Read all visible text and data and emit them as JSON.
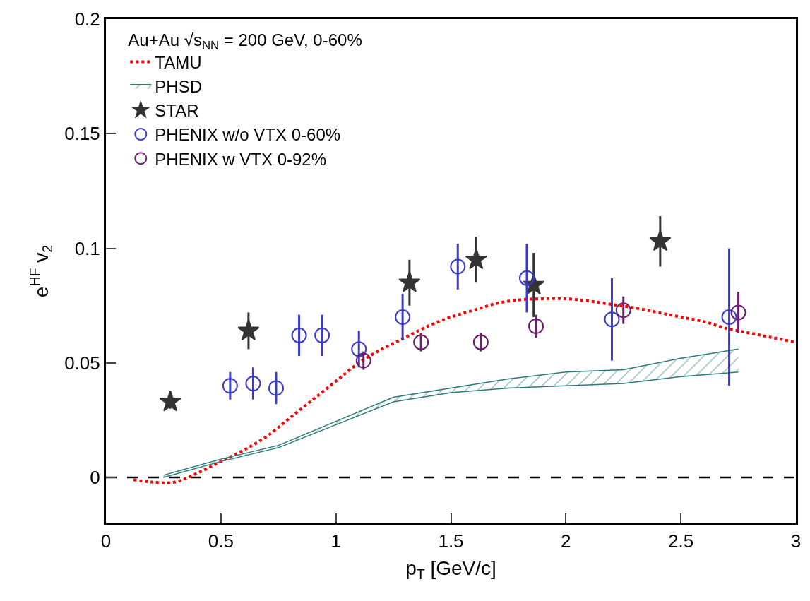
{
  "chart_data": {
    "type": "scatter",
    "xlabel": "p$_{T}$ [GeV/c]",
    "ylabel": "e$^{HF}$ v$_{2}$",
    "legend_title": "Au+Au √s$_{NN}$ = 200 GeV, 0-60%",
    "xlim": [
      0,
      3
    ],
    "ylim": [
      -0.02,
      0.2
    ],
    "xticks": [
      0,
      0.5,
      1,
      1.5,
      2,
      2.5,
      3
    ],
    "yticks": [
      0,
      0.05,
      0.1,
      0.15,
      0.2
    ],
    "grid": false,
    "legend": "top left",
    "ref_lines": [
      {
        "axis": "y",
        "value": 0,
        "label": null,
        "color": "#000000",
        "line_style": "dashed"
      }
    ],
    "series": [
      {
        "name": "TAMU",
        "type": "line",
        "color": "#ff0000",
        "line_style": "dotted",
        "marker": "none",
        "x": [
          0.12,
          0.2,
          0.3,
          0.4,
          0.5,
          0.6,
          0.7,
          0.8,
          0.9,
          1.0,
          1.1,
          1.2,
          1.3,
          1.4,
          1.5,
          1.6,
          1.7,
          1.8,
          1.9,
          2.0,
          2.1,
          2.2,
          2.3,
          2.4,
          2.5,
          2.6,
          2.7,
          2.8,
          2.9,
          3.0
        ],
        "values": [
          -0.001,
          -0.002,
          -0.002,
          0.002,
          0.007,
          0.012,
          0.018,
          0.026,
          0.034,
          0.042,
          0.05,
          0.056,
          0.061,
          0.066,
          0.07,
          0.073,
          0.076,
          0.0775,
          0.078,
          0.078,
          0.077,
          0.0755,
          0.074,
          0.072,
          0.07,
          0.068,
          0.065,
          0.063,
          0.061,
          0.059
        ]
      },
      {
        "type": "line",
        "color": "#2a7a78",
        "marker": "none",
        "x": [
          0.25,
          0.5,
          0.75,
          1.25,
          1.5,
          1.75,
          2.0,
          2.25,
          2.5,
          2.75
        ],
        "values": [
          0,
          0.007,
          0.013,
          0.033,
          0.037,
          0.039,
          0.04,
          0.041,
          0.044,
          0.046
        ]
      },
      {
        "name": "PHSD",
        "type": "area",
        "color": "#2a7a78",
        "x": [
          0.25,
          0.5,
          0.75,
          1.25,
          1.5,
          1.75,
          2.0,
          2.25,
          2.5,
          2.75
        ],
        "values": [
          0.001,
          0.008,
          0.014,
          0.035,
          0.039,
          0.043,
          0.046,
          0.047,
          0.052,
          0.056
        ]
      },
      {
        "name": "STAR",
        "color": "#333333",
        "marker": "star",
        "x": [
          0.28,
          0.62,
          1.32,
          1.61,
          1.86,
          2.41
        ],
        "values": [
          0.033,
          0.064,
          0.085,
          0.095,
          0.084,
          0.103
        ],
        "errors": [
          0.003,
          0.008,
          0.01,
          0.01,
          0.014,
          0.011
        ]
      },
      {
        "name": "PHENIX w/o VTX 0-60%",
        "color": "#3a3acf",
        "marker": "circle",
        "x": [
          0.54,
          0.64,
          0.74,
          0.84,
          0.94,
          1.1,
          1.29,
          1.53,
          1.83,
          2.2,
          2.71
        ],
        "values": [
          0.04,
          0.041,
          0.039,
          0.062,
          0.062,
          0.056,
          0.07,
          0.092,
          0.087,
          0.069,
          0.07
        ],
        "errors": [
          0.006,
          0.007,
          0.007,
          0.009,
          0.009,
          0.008,
          0.01,
          0.01,
          0.015,
          0.018,
          0.03
        ]
      },
      {
        "name": "PHENIX w VTX 0-92%",
        "color": "#6b1e6e",
        "marker": "circle",
        "x": [
          1.12,
          1.37,
          1.63,
          1.87,
          2.25,
          2.75
        ],
        "values": [
          0.051,
          0.059,
          0.059,
          0.066,
          0.073,
          0.072
        ],
        "errors": [
          0.004,
          0.004,
          0.004,
          0.005,
          0.006,
          0.009
        ]
      }
    ]
  }
}
